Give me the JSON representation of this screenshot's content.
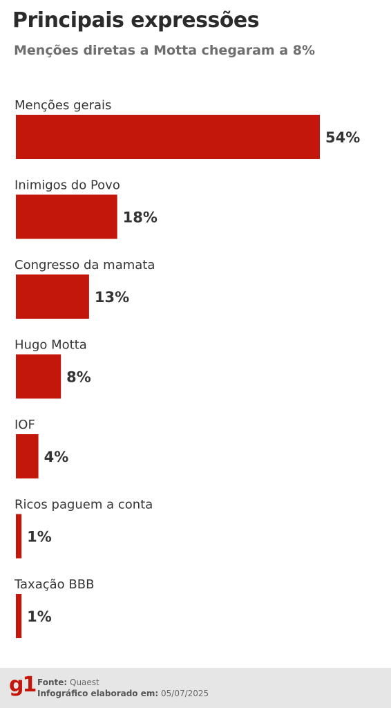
{
  "title": "Principais expressões",
  "subtitle": "Menções diretas a Motta chegaram a 8%",
  "chart_data": {
    "type": "bar",
    "orientation": "horizontal",
    "title": "Principais expressões",
    "subtitle": "Menções diretas a Motta chegaram a 8%",
    "categories": [
      "Menções gerais",
      "Inimigos do Povo",
      "Congresso da mamata",
      "Hugo Motta",
      "IOF",
      "Ricos paguem a conta",
      "Taxação BBB"
    ],
    "values": [
      54,
      18,
      13,
      8,
      4,
      1,
      1
    ],
    "value_labels": [
      "54%",
      "18%",
      "13%",
      "8%",
      "4%",
      "1%",
      "1%"
    ],
    "unit": "%",
    "bar_color": "#c4170c",
    "xlim": [
      0,
      54
    ],
    "grid": false,
    "legend": "none"
  },
  "footer": {
    "logo": "g1",
    "source_label": "Fonte:",
    "source_value": "Quaest",
    "date_label": "Infográfico elaborado em:",
    "date_value": "05/07/2025",
    "brand_color": "#c4170c"
  }
}
